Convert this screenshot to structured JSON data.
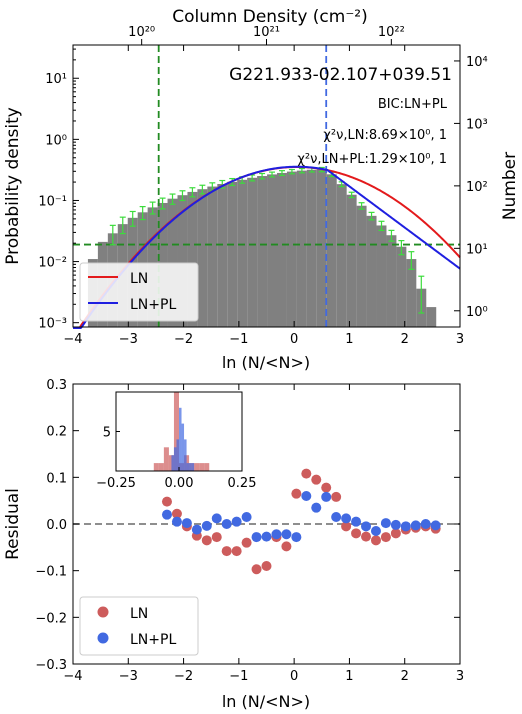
{
  "chart_data": [
    {
      "type": "bar",
      "panel": "top",
      "title": "G221.933-02.107+039.51",
      "annotations": {
        "bic": "BIC:LN+PL",
        "chi_ln": "χ²ν,LN:8.69×10⁰, 1",
        "chi_lnpl": "χ²ν,LN+PL:1.29×10⁰, 1"
      },
      "xlabel": "ln (N/<N>)",
      "ylabel": "Probability density",
      "ylabel_right": "Number",
      "xlabel_top": "Column Density (cm⁻²)",
      "xlim": [
        -4,
        3
      ],
      "ylim": [
        0.00085,
        35
      ],
      "yscale": "log",
      "x_ticks": [
        "−4",
        "−3",
        "−2",
        "−1",
        "0",
        "1",
        "2",
        "3"
      ],
      "y_ticks": [
        "10⁻³",
        "10⁻²",
        "10⁻¹",
        "10⁰",
        "10¹"
      ],
      "y_right_ticks": [
        "10⁰",
        "10¹",
        "10²",
        "10³",
        "10⁴"
      ],
      "x_top_ticks": [
        "10²⁰",
        "10²¹",
        "10²²"
      ],
      "histogram": {
        "bin_centers": [
          -3.64,
          -3.46,
          -3.28,
          -3.1,
          -2.92,
          -2.74,
          -2.56,
          -2.38,
          -2.2,
          -2.02,
          -1.84,
          -1.66,
          -1.48,
          -1.3,
          -1.12,
          -0.94,
          -0.76,
          -0.58,
          -0.4,
          -0.22,
          -0.04,
          0.14,
          0.32,
          0.5,
          0.68,
          0.86,
          1.04,
          1.22,
          1.4,
          1.58,
          1.76,
          1.94,
          2.12,
          2.3,
          2.48
        ],
        "density": [
          0.011,
          0.021,
          0.029,
          0.041,
          0.052,
          0.064,
          0.077,
          0.091,
          0.107,
          0.122,
          0.138,
          0.153,
          0.169,
          0.186,
          0.202,
          0.218,
          0.235,
          0.251,
          0.267,
          0.282,
          0.297,
          0.308,
          0.318,
          0.321,
          0.268,
          0.185,
          0.124,
          0.082,
          0.056,
          0.039,
          0.027,
          0.0175,
          0.011,
          0.0036,
          0.0018
        ],
        "color": "#808080"
      },
      "error_bars": {
        "x": [
          -3.28,
          -3.1,
          -2.92,
          -2.74,
          -2.56,
          -2.38,
          -2.2,
          -2.02,
          -1.84,
          -1.66,
          -1.48,
          -1.3,
          -1.12,
          -0.94,
          -0.76,
          -0.58,
          -0.4,
          -0.22,
          -0.04,
          0.14,
          0.32,
          0.5,
          0.68,
          0.86,
          1.04,
          1.22,
          1.4,
          1.58,
          1.76,
          1.94,
          2.12,
          2.3
        ],
        "y": [
          0.029,
          0.041,
          0.052,
          0.064,
          0.077,
          0.091,
          0.107,
          0.122,
          0.138,
          0.153,
          0.169,
          0.186,
          0.202,
          0.218,
          0.235,
          0.251,
          0.267,
          0.282,
          0.297,
          0.308,
          0.318,
          0.321,
          0.268,
          0.185,
          0.124,
          0.082,
          0.056,
          0.039,
          0.027,
          0.0175,
          0.011,
          0.0036
        ],
        "rel_err": [
          0.35,
          0.3,
          0.27,
          0.24,
          0.22,
          0.2,
          0.19,
          0.18,
          0.17,
          0.16,
          0.15,
          0.14,
          0.13,
          0.12,
          0.11,
          0.1,
          0.09,
          0.09,
          0.08,
          0.08,
          0.08,
          0.08,
          0.08,
          0.09,
          0.1,
          0.12,
          0.14,
          0.17,
          0.2,
          0.26,
          0.32,
          0.6
        ],
        "color": "#3cdc3c"
      },
      "series": [
        {
          "name": "LN",
          "color": "#e31a1c",
          "model": "lognormal",
          "mu": 0.05,
          "sigma": 1.13
        },
        {
          "name": "LN+PL",
          "color": "#1f1fe0",
          "model": "lognormal_powerlaw",
          "mu": 0.05,
          "sigma": 1.12,
          "transition": 0.6,
          "slope": -1.55
        }
      ],
      "ref_lines": [
        {
          "axis": "x",
          "value": -2.45,
          "color": "#228b22",
          "style": "dashed"
        },
        {
          "axis": "x",
          "value": 0.58,
          "color": "#4169e1",
          "style": "dashed"
        },
        {
          "axis": "y",
          "value": 0.019,
          "color": "#228b22",
          "style": "dashed"
        }
      ],
      "legend": {
        "placement": "lower-left",
        "entries": [
          "LN",
          "LN+PL"
        ]
      }
    },
    {
      "type": "scatter",
      "panel": "bottom",
      "xlabel": "ln (N/<N>)",
      "ylabel": "Residual",
      "xlim": [
        -4,
        3
      ],
      "ylim": [
        -0.3,
        0.3
      ],
      "x_ticks": [
        "−4",
        "−3",
        "−2",
        "−1",
        "0",
        "1",
        "2",
        "3"
      ],
      "y_ticks": [
        "−0.3",
        "−0.2",
        "−0.1",
        "0.0",
        "0.1",
        "0.2",
        "0.3"
      ],
      "zero_line": 0,
      "series": [
        {
          "name": "LN",
          "color": "#cd5c5c",
          "x": [
            -2.3,
            -2.12,
            -1.94,
            -1.76,
            -1.58,
            -1.4,
            -1.22,
            -1.04,
            -0.86,
            -0.68,
            -0.5,
            -0.32,
            -0.14,
            0.04,
            0.22,
            0.4,
            0.58,
            0.76,
            0.94,
            1.12,
            1.3,
            1.48,
            1.66,
            1.84,
            2.02,
            2.2,
            2.38,
            2.56
          ],
          "y": [
            0.048,
            0.022,
            -0.005,
            -0.025,
            -0.035,
            -0.028,
            -0.058,
            -0.058,
            -0.04,
            -0.097,
            -0.09,
            -0.028,
            -0.048,
            0.065,
            0.108,
            0.095,
            0.078,
            0.058,
            -0.005,
            -0.02,
            -0.027,
            -0.035,
            -0.028,
            -0.02,
            -0.012,
            -0.008,
            -0.005,
            -0.01
          ]
        },
        {
          "name": "LN+PL",
          "color": "#4169e1",
          "x": [
            -2.3,
            -2.12,
            -1.94,
            -1.76,
            -1.58,
            -1.4,
            -1.22,
            -1.04,
            -0.86,
            -0.68,
            -0.5,
            -0.32,
            -0.14,
            0.04,
            0.22,
            0.4,
            0.58,
            0.76,
            0.94,
            1.12,
            1.3,
            1.48,
            1.66,
            1.84,
            2.02,
            2.2,
            2.38,
            2.56
          ],
          "y": [
            0.02,
            0.005,
            0.002,
            -0.012,
            -0.004,
            0.012,
            0.0,
            0.005,
            0.015,
            -0.028,
            -0.027,
            -0.022,
            -0.022,
            -0.028,
            0.06,
            0.035,
            0.058,
            0.015,
            0.012,
            0.005,
            -0.005,
            -0.015,
            0.002,
            -0.002,
            -0.005,
            -0.003,
            0.0,
            -0.003
          ]
        }
      ],
      "legend": {
        "placement": "lower-left",
        "entries": [
          "LN",
          "LN+PL"
        ]
      },
      "inset": {
        "type": "histogram",
        "xlim": [
          -0.25,
          0.25
        ],
        "ylim": [
          0,
          10
        ],
        "x_ticks": [
          "−0.25",
          "0.00",
          "0.25"
        ],
        "y_ticks": [
          "5"
        ],
        "series": [
          {
            "name": "LN",
            "color": "#cd5c5c",
            "bin_edges": [
              -0.1,
              -0.08,
              -0.06,
              -0.04,
              -0.02,
              0.0,
              0.02,
              0.04,
              0.06,
              0.08,
              0.1,
              0.12
            ],
            "counts": [
              1,
              1,
              3,
              2,
              10,
              1,
              2,
              1,
              1,
              1,
              1
            ]
          },
          {
            "name": "LN+PL",
            "color": "#4169e1",
            "bin_edges": [
              -0.03,
              -0.02,
              -0.01,
              0.0,
              0.01,
              0.02,
              0.03,
              0.04,
              0.05,
              0.06
            ],
            "counts": [
              2,
              3,
              4,
              8,
              6,
              4,
              1,
              1,
              1
            ]
          }
        ]
      }
    }
  ]
}
